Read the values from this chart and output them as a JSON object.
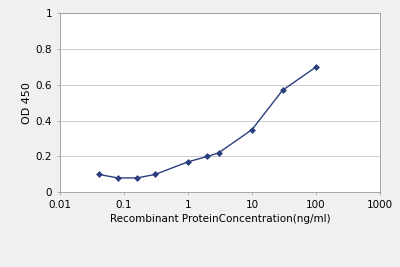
{
  "x": [
    0.04,
    0.08,
    0.16,
    0.31,
    1.0,
    2.0,
    3.0,
    10.0,
    30.0,
    100.0
  ],
  "y": [
    0.1,
    0.08,
    0.08,
    0.1,
    0.17,
    0.2,
    0.22,
    0.35,
    0.57,
    0.7
  ],
  "line_color": "#2b3f7e",
  "marker_color": "#2b3f7e",
  "marker": "D",
  "marker_size": 3,
  "line_width": 1.0,
  "xlabel": "Recombinant ProteinConcentration(ng/ml)",
  "ylabel": "OD 450",
  "xlim": [
    0.01,
    1000
  ],
  "ylim": [
    0,
    1
  ],
  "yticks": [
    0,
    0.2,
    0.4,
    0.6,
    0.8,
    1
  ],
  "ytick_labels": [
    "0",
    "0.2",
    "0.4",
    "0.6",
    "0.8",
    "1"
  ],
  "xtick_labels": [
    "0.01",
    "0.1",
    "1",
    "10",
    "100",
    "1000"
  ],
  "xtick_values": [
    0.01,
    0.1,
    1,
    10,
    100,
    1000
  ],
  "bg_color": "#f0f0f0",
  "plot_bg_color": "#ffffff",
  "grid_color": "#cccccc",
  "xlabel_fontsize": 7.5,
  "ylabel_fontsize": 8,
  "tick_fontsize": 7.5
}
